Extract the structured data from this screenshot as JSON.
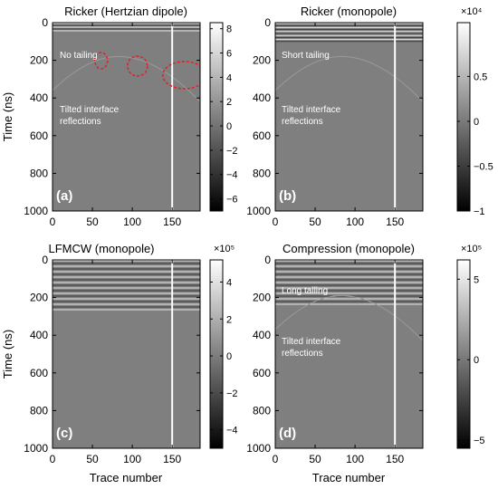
{
  "chart_data": [
    {
      "type": "heatmap",
      "title": "Ricker (Hertzian dipole)",
      "panel_label": "(a)",
      "xlabel": "",
      "ylabel": "Time (ns)",
      "xlim": [
        0,
        185
      ],
      "ylim": [
        1000,
        0
      ],
      "x_ticks": [
        0,
        50,
        100,
        150
      ],
      "y_ticks": [
        0,
        200,
        400,
        600,
        800,
        1000
      ],
      "colorbar": {
        "range": [
          -7,
          8.5
        ],
        "ticks": [
          8,
          6,
          4,
          2,
          0,
          -2,
          -4,
          -6
        ],
        "tick_labels": [
          "8",
          "6",
          "4",
          "2",
          "0",
          "−2",
          "−4",
          "−6"
        ],
        "exponent": ""
      },
      "bright_trace_x": 150,
      "annotations": [
        "No tailing",
        "Tilted interface",
        "reflections"
      ],
      "highlight_ellipses_xy": [
        [
          47,
          75
        ],
        [
          93,
          120
        ],
        [
          136,
          195
        ]
      ]
    },
    {
      "type": "heatmap",
      "title": "Ricker (monopole)",
      "panel_label": "(b)",
      "xlabel": "",
      "ylabel": "",
      "xlim": [
        0,
        185
      ],
      "ylim": [
        1000,
        0
      ],
      "x_ticks": [
        0,
        50,
        100,
        150
      ],
      "y_ticks": [
        0,
        200,
        400,
        600,
        800,
        1000
      ],
      "colorbar": {
        "range": [
          -1,
          1.1
        ],
        "ticks": [
          0.5,
          0,
          -0.5,
          -1
        ],
        "tick_labels": [
          "0.5",
          "0",
          "−0.5",
          "−1"
        ],
        "exponent": "×10⁴"
      },
      "bright_trace_x": 150,
      "annotations": [
        "Short tailing",
        "Tilted interface",
        "reflections"
      ]
    },
    {
      "type": "heatmap",
      "title": "LFMCW (monopole)",
      "panel_label": "(c)",
      "xlabel": "Trace number",
      "ylabel": "Time (ns)",
      "xlim": [
        0,
        185
      ],
      "ylim": [
        1000,
        0
      ],
      "x_ticks": [
        0,
        50,
        100,
        150
      ],
      "y_ticks": [
        0,
        200,
        400,
        600,
        800,
        1000
      ],
      "colorbar": {
        "range": [
          -5,
          5.2
        ],
        "ticks": [
          4,
          2,
          0,
          -2,
          -4
        ],
        "tick_labels": [
          "4",
          "2",
          "0",
          "−2",
          "−4"
        ],
        "exponent": "×10⁵"
      },
      "bright_trace_x": 150,
      "annotations": []
    },
    {
      "type": "heatmap",
      "title": "Compression (monopole)",
      "panel_label": "(d)",
      "xlabel": "Trace number",
      "ylabel": "",
      "xlim": [
        0,
        185
      ],
      "ylim": [
        1000,
        0
      ],
      "x_ticks": [
        0,
        50,
        100,
        150
      ],
      "y_ticks": [
        0,
        200,
        400,
        600,
        800,
        1000
      ],
      "colorbar": {
        "range": [
          -5.5,
          6.2
        ],
        "ticks": [
          5,
          0,
          -5
        ],
        "tick_labels": [
          "5",
          "0",
          "−5"
        ],
        "exponent": "×10⁵"
      },
      "bright_trace_x": 150,
      "annotations": [
        "Long tailing",
        "Tilted interface",
        "reflections"
      ]
    }
  ],
  "colors": {
    "background_gray": "#7f7f7f",
    "annotation_text": "#ffffff",
    "highlight_ellipse": "#e0202a",
    "colorbar_top": "#ffffff",
    "colorbar_bottom": "#000000"
  }
}
